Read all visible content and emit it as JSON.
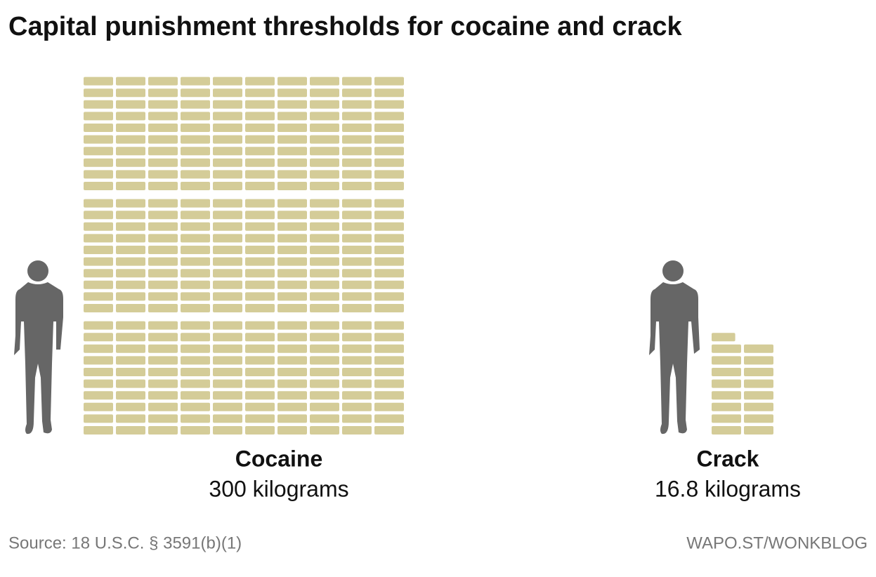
{
  "chart_data": {
    "type": "pictogram",
    "title": "Capital punishment thresholds for cocaine and crack",
    "categories": [
      "Cocaine",
      "Crack"
    ],
    "values": [
      300,
      16.8
    ],
    "value_labels": [
      "300 kilograms",
      "16.8 kilograms"
    ],
    "color": "#d4cc98",
    "source": "Source: 18 U.S.C. § 3591(b)(1)",
    "credit": "WAPO.ST/WONKBLOG"
  }
}
